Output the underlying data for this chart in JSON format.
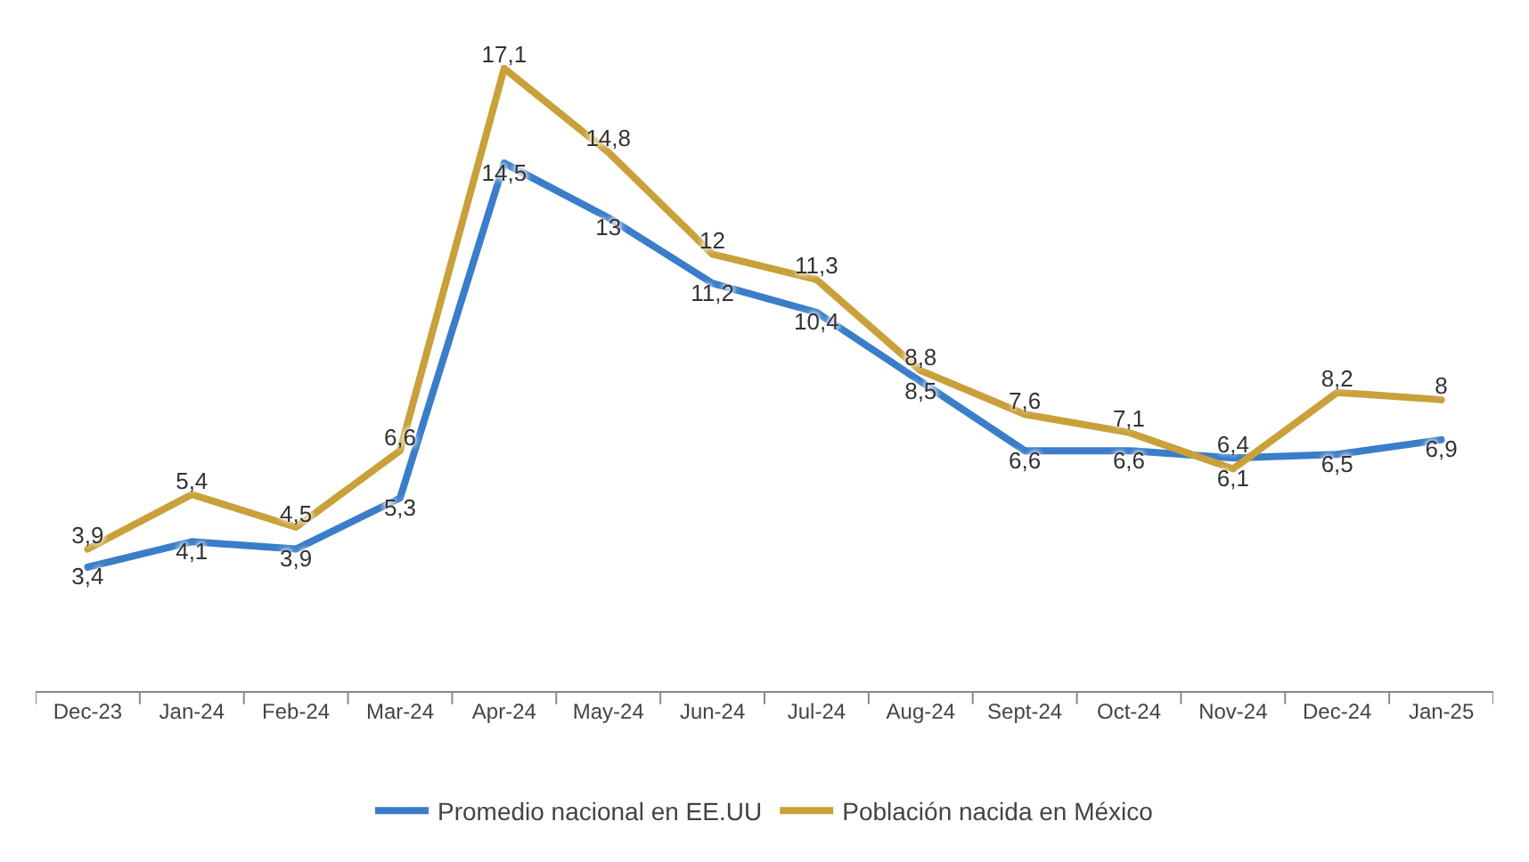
{
  "chart_data": {
    "type": "line",
    "categories": [
      "Dec-23",
      "Jan-24",
      "Feb-24",
      "Mar-24",
      "Apr-24",
      "May-24",
      "Jun-24",
      "Jul-24",
      "Aug-24",
      "Sept-24",
      "Oct-24",
      "Nov-24",
      "Dec-24",
      "Jan-25"
    ],
    "series": [
      {
        "name": "Promedio nacional en EE.UU",
        "color": "#3a7dc9",
        "values": [
          3.4,
          4.1,
          3.9,
          5.3,
          14.5,
          13,
          11.2,
          10.4,
          8.5,
          6.6,
          6.6,
          6.4,
          6.5,
          6.9
        ],
        "value_labels": [
          "3,4",
          "4,1",
          "3,9",
          "5,3",
          "14,5",
          "13",
          "11,2",
          "10,4",
          "8,5",
          "6,6",
          "6,6",
          "6,4",
          "6,5",
          "6,9"
        ]
      },
      {
        "name": "Población nacida en México",
        "color": "#c9a03a",
        "values": [
          3.9,
          5.4,
          4.5,
          6.6,
          17.1,
          14.8,
          12,
          11.3,
          8.8,
          7.6,
          7.1,
          6.1,
          8.2,
          8
        ],
        "value_labels": [
          "3,9",
          "5,4",
          "4,5",
          "6,6",
          "17,1",
          "14,8",
          "12",
          "11,3",
          "8,8",
          "7,6",
          "7,1",
          "6,1",
          "8,2",
          "8"
        ]
      }
    ],
    "legend": "bottom",
    "marker": "none",
    "line_style": "solid"
  }
}
